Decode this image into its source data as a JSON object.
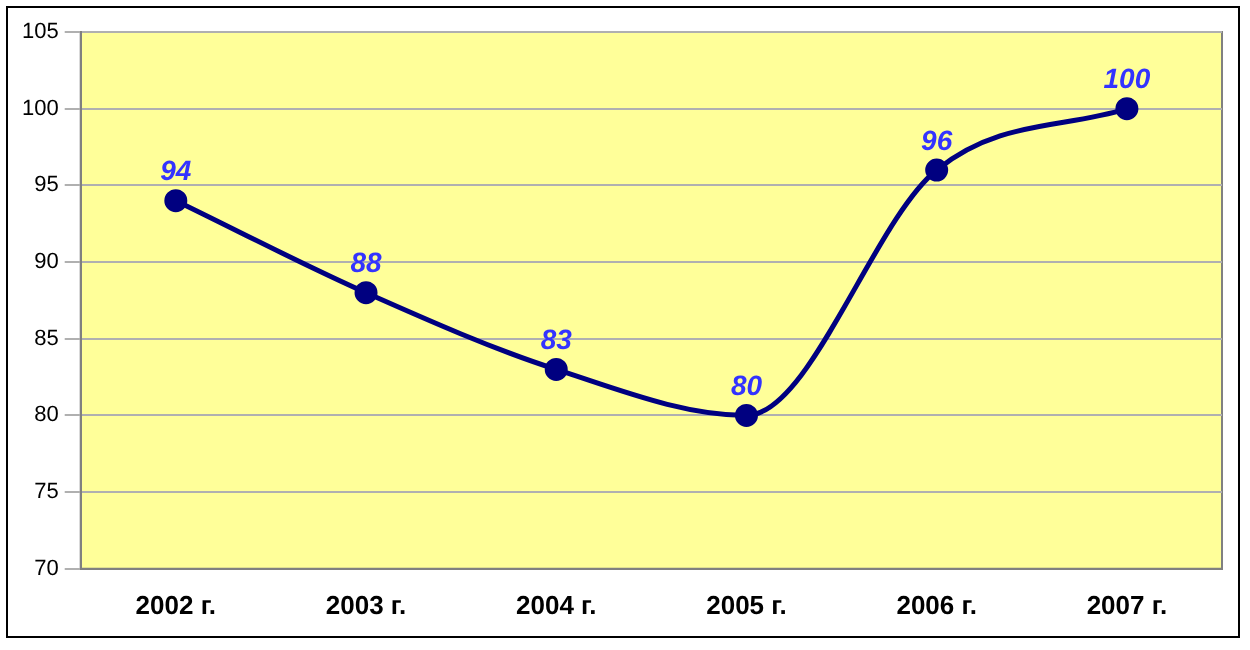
{
  "chart_data": {
    "type": "line",
    "categories": [
      "2002 г.",
      "2003 г.",
      "2004 г.",
      "2005 г.",
      "2006 г.",
      "2007 г."
    ],
    "values": [
      94,
      88,
      83,
      80,
      96,
      100
    ],
    "color": "#000080",
    "ylim": [
      70,
      105
    ],
    "yticks": [
      70,
      75,
      80,
      85,
      90,
      95,
      100,
      105
    ],
    "grid": "y",
    "marker": "circle",
    "data_labels": true
  }
}
